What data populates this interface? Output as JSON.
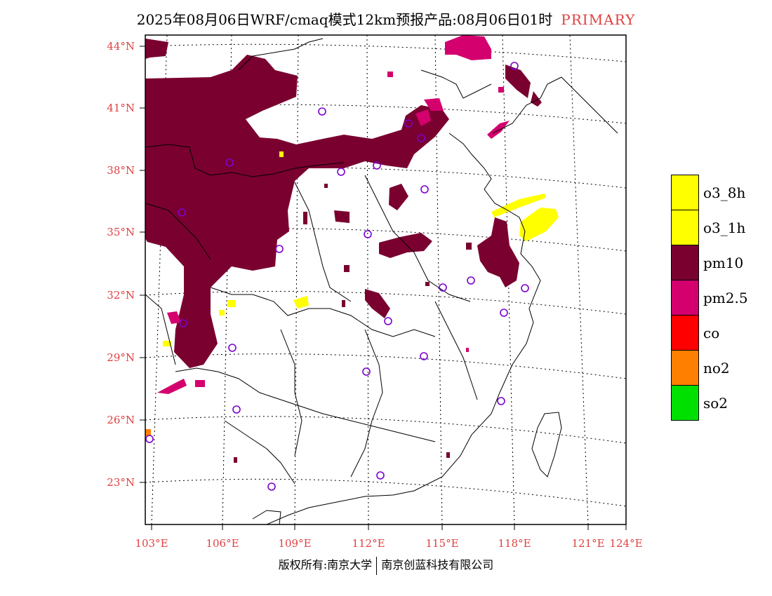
{
  "title": {
    "text": "2025年08月06日WRF/cmaq模式12km预报产品:08月06日01时",
    "tag": "PRIMARY"
  },
  "axes": {
    "lat_labels": [
      "44°N",
      "41°N",
      "38°N",
      "35°N",
      "32°N",
      "29°N",
      "26°N",
      "23°N"
    ],
    "lon_labels": [
      "103°E",
      "106°E",
      "109°E",
      "112°E",
      "115°E",
      "118°E",
      "121°E",
      "124°E"
    ]
  },
  "legend": [
    {
      "label": "o3_8h",
      "color": "#ffff00"
    },
    {
      "label": "o3_1h",
      "color": "#ffff00"
    },
    {
      "label": "pm10",
      "color": "#7a0030"
    },
    {
      "label": "pm2.5",
      "color": "#d4006e"
    },
    {
      "label": "co",
      "color": "#ff0000"
    },
    {
      "label": "no2",
      "color": "#ff8000"
    },
    {
      "label": "so2",
      "color": "#00e000"
    }
  ],
  "footer": {
    "left": "版权所有:南京大学",
    "right": "南京创蓝科技有限公司"
  }
}
